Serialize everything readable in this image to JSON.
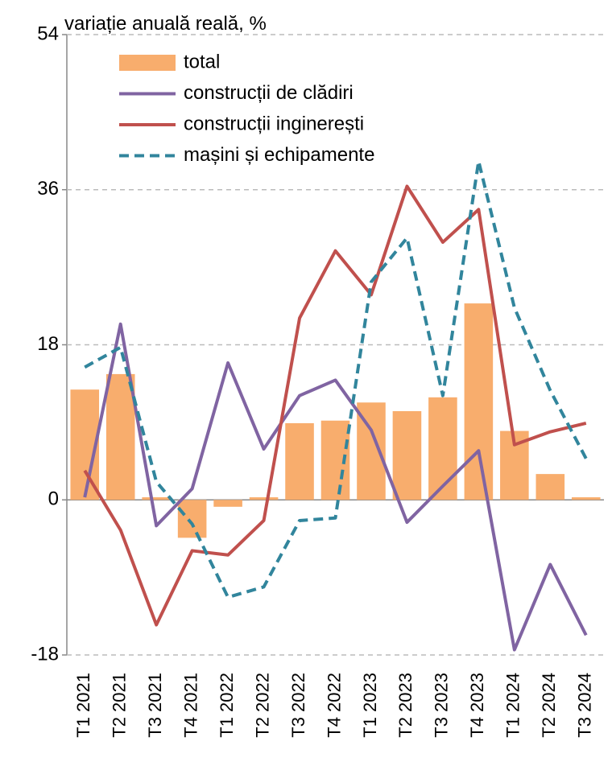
{
  "chart_data": {
    "type": "combo",
    "title": "variație anuală reală, %",
    "categories": [
      "T1 2021",
      "T2 2021",
      "T3 2021",
      "T4 2021",
      "T1 2022",
      "T2 2022",
      "T3 2022",
      "T4 2022",
      "T1 2023",
      "T2 2023",
      "T3 2023",
      "T4 2023",
      "T1 2024",
      "T2 2024",
      "T3 2024"
    ],
    "series": [
      {
        "name": "total",
        "kind": "bar",
        "color": "#f8ad6d",
        "values": [
          12.8,
          14.6,
          0.3,
          -4.4,
          -0.8,
          0.3,
          8.9,
          9.2,
          11.3,
          10.3,
          11.9,
          22.8,
          8.0,
          3.0,
          0.3
        ]
      },
      {
        "name": "construcții de clădiri",
        "kind": "line",
        "color": "#8064a2",
        "values": [
          0.3,
          20.4,
          -3.0,
          1.3,
          15.9,
          5.9,
          12.1,
          13.9,
          8.1,
          -2.6,
          1.6,
          5.7,
          -17.4,
          -7.5,
          -15.7
        ]
      },
      {
        "name": "construcții inginerești",
        "kind": "line",
        "color": "#c0504d",
        "values": [
          3.4,
          -3.5,
          -14.5,
          -5.9,
          -6.4,
          -2.4,
          21.1,
          28.9,
          23.8,
          36.4,
          29.9,
          33.7,
          6.4,
          7.9,
          8.9
        ]
      },
      {
        "name": "mașini și echipamente",
        "kind": "line",
        "dashed": true,
        "color": "#31859c",
        "values": [
          15.4,
          17.7,
          2.1,
          -2.8,
          -11.3,
          -10.1,
          -2.4,
          -2.1,
          25.3,
          30.4,
          12.1,
          39.3,
          22.3,
          12.7,
          4.8
        ]
      }
    ],
    "ylim": [
      -18,
      54
    ],
    "yticks": [
      -18,
      0,
      18,
      36,
      54
    ],
    "grid": true
  }
}
